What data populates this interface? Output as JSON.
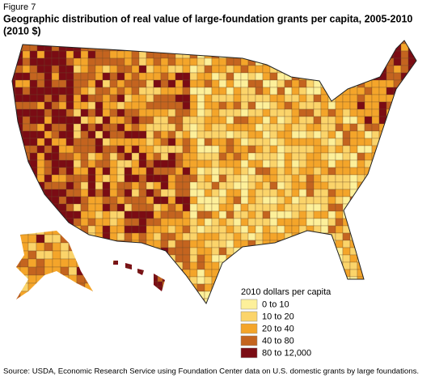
{
  "figure_label": "Figure 7",
  "title_lines": [
    "Geographic distribution of real value of large-foundation grants per capita, 2005-2010",
    "(2010 $)"
  ],
  "legend": {
    "title": "2010 dollars per capita",
    "items": [
      {
        "label": "0 to 10",
        "color": "#fdf09a"
      },
      {
        "label": "10 to 20",
        "color": "#fbd46a"
      },
      {
        "label": "20 to 40",
        "color": "#f4a52a"
      },
      {
        "label": "40 to 80",
        "color": "#c4641f"
      },
      {
        "label": "80 to 12,000",
        "color": "#7b0c14"
      }
    ]
  },
  "source": "Source: USDA, Economic Research Service using Foundation Center data on U.S. domestic grants by large foundations."
}
